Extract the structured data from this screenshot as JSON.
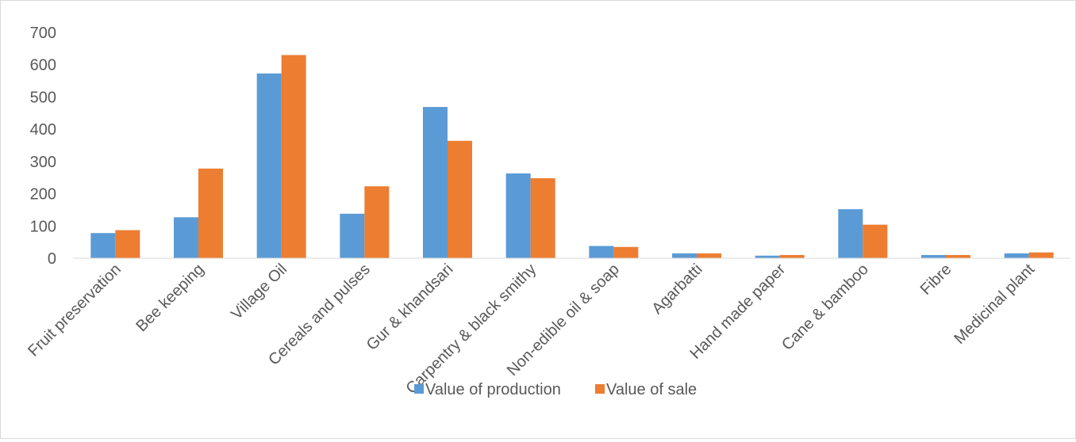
{
  "chart_data": {
    "type": "bar",
    "categories": [
      "Fruit preservation",
      "Bee keeping",
      "Village Oil",
      "Cereals and pulses",
      "Gur & khandsari",
      "Carpentry & black smithy",
      "Non-edible oil & soap",
      "Agarbatti",
      "Hand made paper",
      "Cane & bamboo",
      "Fibre",
      "Medicinal plant"
    ],
    "series": [
      {
        "name": "Value of production",
        "color": "#5b9bd5",
        "values": [
          78,
          127,
          573,
          138,
          469,
          263,
          38,
          15,
          8,
          152,
          10,
          15
        ]
      },
      {
        "name": "Value of sale",
        "color": "#ed7d31",
        "values": [
          87,
          278,
          630,
          223,
          364,
          248,
          35,
          15,
          10,
          104,
          10,
          18
        ]
      }
    ],
    "yticks": [
      "0",
      "100",
      "200",
      "300",
      "400",
      "500",
      "600",
      "700"
    ],
    "ylim": [
      0,
      700
    ],
    "grid": false,
    "legend": "bottom",
    "title": "",
    "xlabel": "",
    "ylabel": ""
  }
}
